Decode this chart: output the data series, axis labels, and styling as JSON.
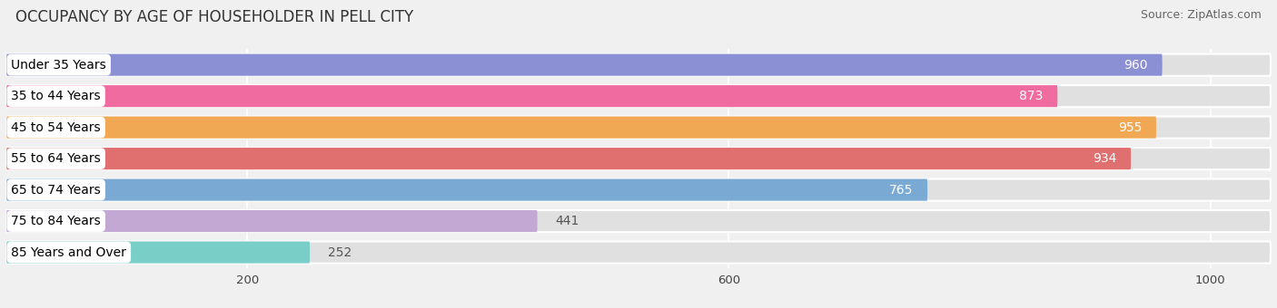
{
  "title": "OCCUPANCY BY AGE OF HOUSEHOLDER IN PELL CITY",
  "source": "Source: ZipAtlas.com",
  "categories": [
    "Under 35 Years",
    "35 to 44 Years",
    "45 to 54 Years",
    "55 to 64 Years",
    "65 to 74 Years",
    "75 to 84 Years",
    "85 Years and Over"
  ],
  "values": [
    960,
    873,
    955,
    934,
    765,
    441,
    252
  ],
  "bar_colors": [
    "#8b8fd4",
    "#f06ba0",
    "#f0a854",
    "#e07070",
    "#7aaad4",
    "#c4a8d4",
    "#7acec8"
  ],
  "xlim_max": 1050,
  "xticks": [
    200,
    600,
    1000
  ],
  "background_color": "#f0f0f0",
  "bar_bg_color": "#e0e0e0",
  "title_fontsize": 12,
  "source_fontsize": 9,
  "label_fontsize": 10,
  "value_fontsize": 10,
  "bar_height": 0.7,
  "bar_gap": 0.3
}
